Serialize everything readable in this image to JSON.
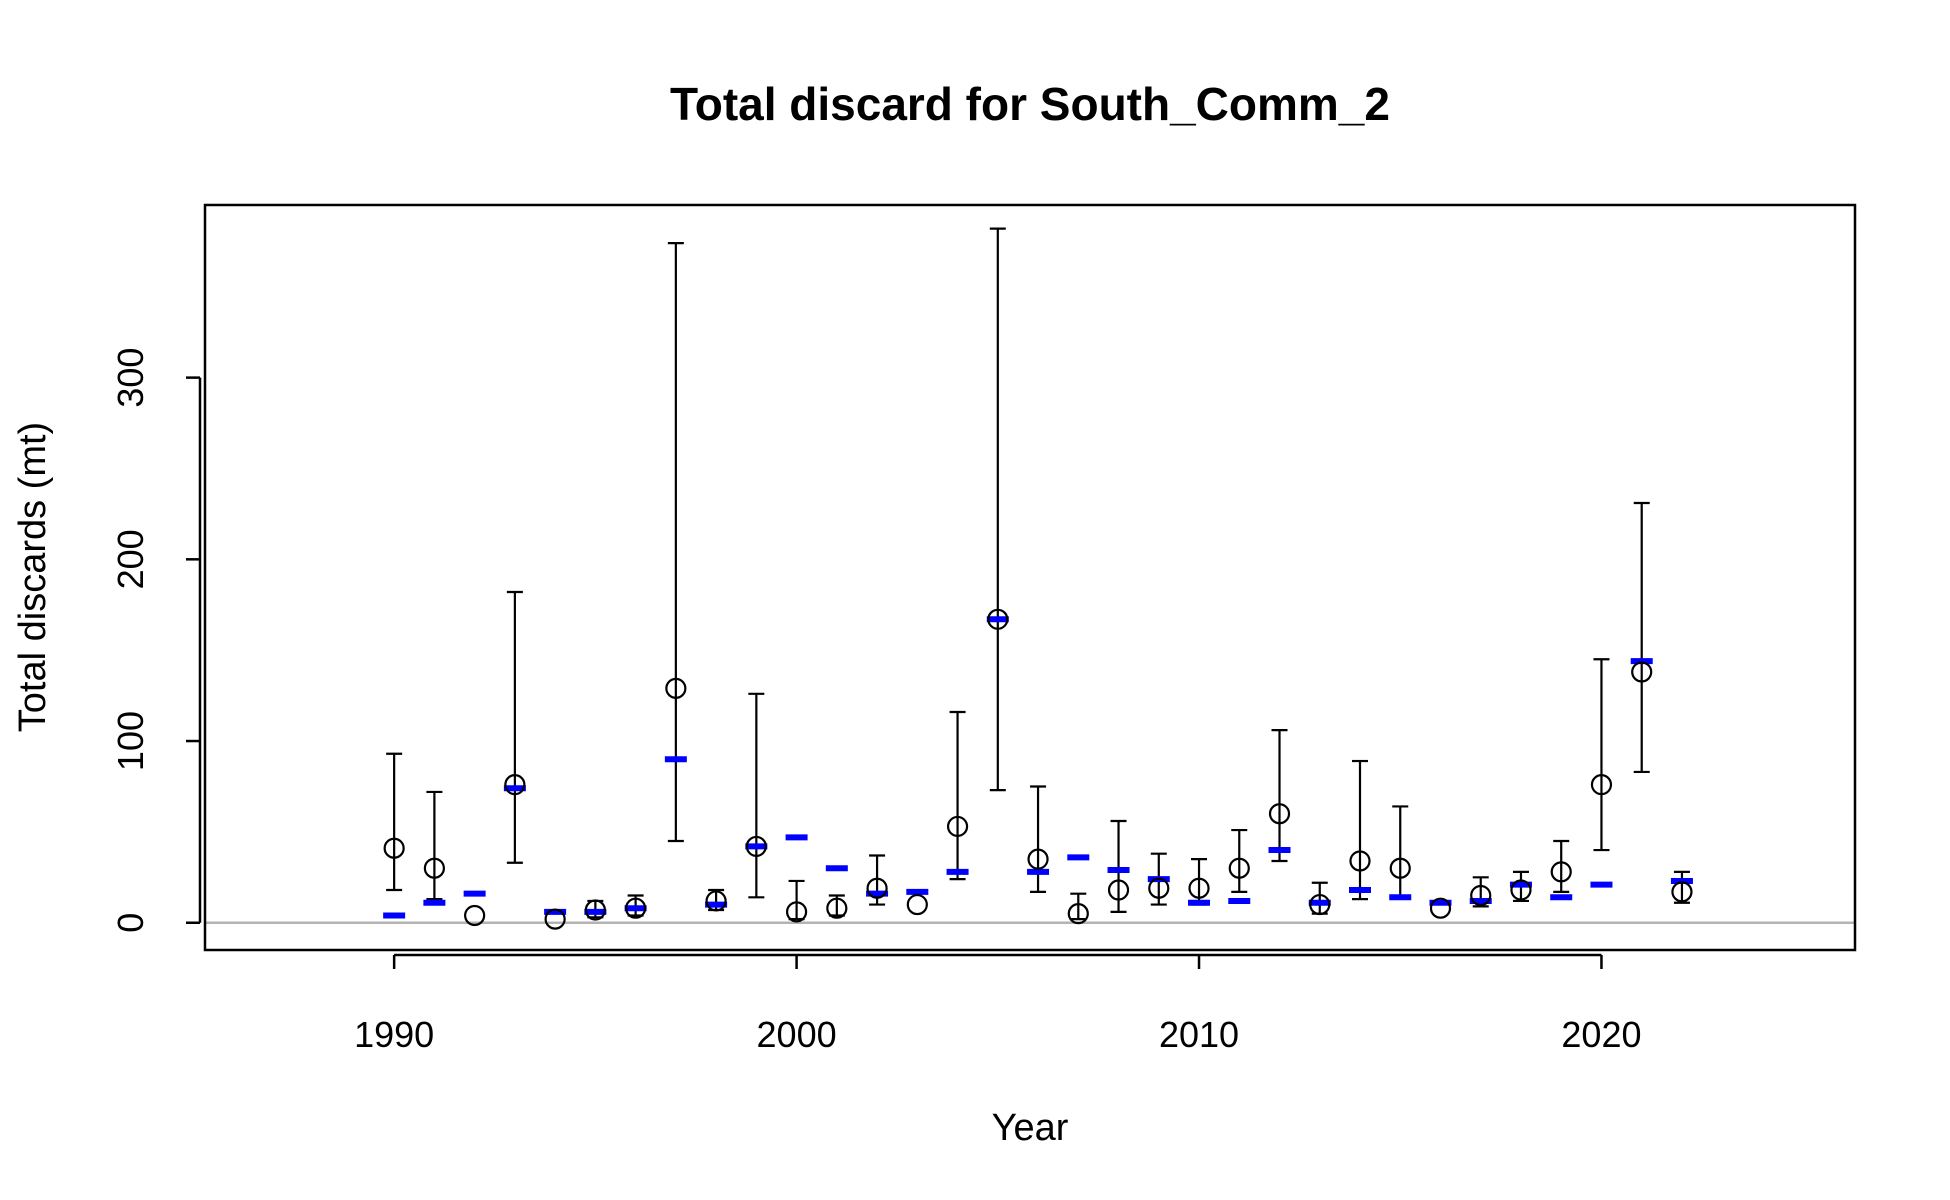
{
  "chart_data": {
    "type": "scatter",
    "title": "Total discard for South_Comm_2",
    "xlabel": "Year",
    "ylabel": "Total discards (mt)",
    "xlim": [
      1985.3,
      2026.3
    ],
    "ylim": [
      -15,
      395
    ],
    "x_ticks": [
      1990,
      2000,
      2010,
      2020
    ],
    "y_ticks": [
      0,
      100,
      200,
      300
    ],
    "reference_line": {
      "y": 0,
      "color": "#b3b3b3"
    },
    "colors": {
      "observed": "#000000",
      "expected": "#0000ff",
      "frame": "#000000"
    },
    "series": [
      {
        "kind": "observed",
        "marker": "open-circle",
        "with_error_bars": true,
        "points": [
          {
            "x": 1990,
            "y": 41,
            "lo": 18,
            "hi": 93
          },
          {
            "x": 1991,
            "y": 30,
            "lo": 13,
            "hi": 72
          },
          {
            "x": 1992,
            "y": 4,
            "lo": 4,
            "hi": 4
          },
          {
            "x": 1993,
            "y": 76,
            "lo": 33,
            "hi": 182
          },
          {
            "x": 1994,
            "y": 2,
            "lo": 2,
            "hi": 2
          },
          {
            "x": 1995,
            "y": 7,
            "lo": 3,
            "hi": 12
          },
          {
            "x": 1996,
            "y": 8,
            "lo": 4,
            "hi": 15
          },
          {
            "x": 1997,
            "y": 129,
            "lo": 45,
            "hi": 374
          },
          {
            "x": 1998,
            "y": 12,
            "lo": 7,
            "hi": 18
          },
          {
            "x": 1999,
            "y": 42,
            "lo": 14,
            "hi": 126
          },
          {
            "x": 2000,
            "y": 6,
            "lo": 2,
            "hi": 23
          },
          {
            "x": 2001,
            "y": 8,
            "lo": 4,
            "hi": 15
          },
          {
            "x": 2002,
            "y": 19,
            "lo": 10,
            "hi": 37
          },
          {
            "x": 2003,
            "y": 10,
            "lo": 10,
            "hi": 10
          },
          {
            "x": 2004,
            "y": 53,
            "lo": 24,
            "hi": 116
          },
          {
            "x": 2005,
            "y": 167,
            "lo": 73,
            "hi": 382
          },
          {
            "x": 2006,
            "y": 35,
            "lo": 17,
            "hi": 75
          },
          {
            "x": 2007,
            "y": 5,
            "lo": 2,
            "hi": 16
          },
          {
            "x": 2008,
            "y": 18,
            "lo": 6,
            "hi": 56
          },
          {
            "x": 2009,
            "y": 19,
            "lo": 10,
            "hi": 38
          },
          {
            "x": 2010,
            "y": 19,
            "lo": 10,
            "hi": 35
          },
          {
            "x": 2011,
            "y": 30,
            "lo": 17,
            "hi": 51
          },
          {
            "x": 2012,
            "y": 60,
            "lo": 34,
            "hi": 106
          },
          {
            "x": 2013,
            "y": 10,
            "lo": 5,
            "hi": 22
          },
          {
            "x": 2014,
            "y": 34,
            "lo": 13,
            "hi": 89
          },
          {
            "x": 2015,
            "y": 30,
            "lo": 14,
            "hi": 64
          },
          {
            "x": 2016,
            "y": 8,
            "lo": 8,
            "hi": 8
          },
          {
            "x": 2017,
            "y": 15,
            "lo": 9,
            "hi": 25
          },
          {
            "x": 2018,
            "y": 18,
            "lo": 12,
            "hi": 28
          },
          {
            "x": 2019,
            "y": 28,
            "lo": 17,
            "hi": 45
          },
          {
            "x": 2020,
            "y": 76,
            "lo": 40,
            "hi": 145
          },
          {
            "x": 2021,
            "y": 138,
            "lo": 83,
            "hi": 231
          },
          {
            "x": 2022,
            "y": 17,
            "lo": 11,
            "hi": 28
          }
        ]
      },
      {
        "kind": "expected",
        "marker": "blue-dash",
        "points": [
          {
            "x": 1990,
            "y": 4
          },
          {
            "x": 1991,
            "y": 11
          },
          {
            "x": 1992,
            "y": 16
          },
          {
            "x": 1993,
            "y": 74
          },
          {
            "x": 1994,
            "y": 6
          },
          {
            "x": 1995,
            "y": 6
          },
          {
            "x": 1996,
            "y": 8
          },
          {
            "x": 1997,
            "y": 90
          },
          {
            "x": 1998,
            "y": 10
          },
          {
            "x": 1999,
            "y": 42
          },
          {
            "x": 2000,
            "y": 47
          },
          {
            "x": 2001,
            "y": 30
          },
          {
            "x": 2002,
            "y": 16
          },
          {
            "x": 2003,
            "y": 17
          },
          {
            "x": 2004,
            "y": 28
          },
          {
            "x": 2005,
            "y": 167
          },
          {
            "x": 2006,
            "y": 28
          },
          {
            "x": 2007,
            "y": 36
          },
          {
            "x": 2008,
            "y": 29
          },
          {
            "x": 2009,
            "y": 24
          },
          {
            "x": 2010,
            "y": 11
          },
          {
            "x": 2011,
            "y": 12
          },
          {
            "x": 2012,
            "y": 40
          },
          {
            "x": 2013,
            "y": 11
          },
          {
            "x": 2014,
            "y": 18
          },
          {
            "x": 2015,
            "y": 14
          },
          {
            "x": 2016,
            "y": 11
          },
          {
            "x": 2017,
            "y": 12
          },
          {
            "x": 2018,
            "y": 21
          },
          {
            "x": 2019,
            "y": 14
          },
          {
            "x": 2020,
            "y": 21
          },
          {
            "x": 2021,
            "y": 144
          },
          {
            "x": 2022,
            "y": 23
          }
        ]
      }
    ]
  }
}
